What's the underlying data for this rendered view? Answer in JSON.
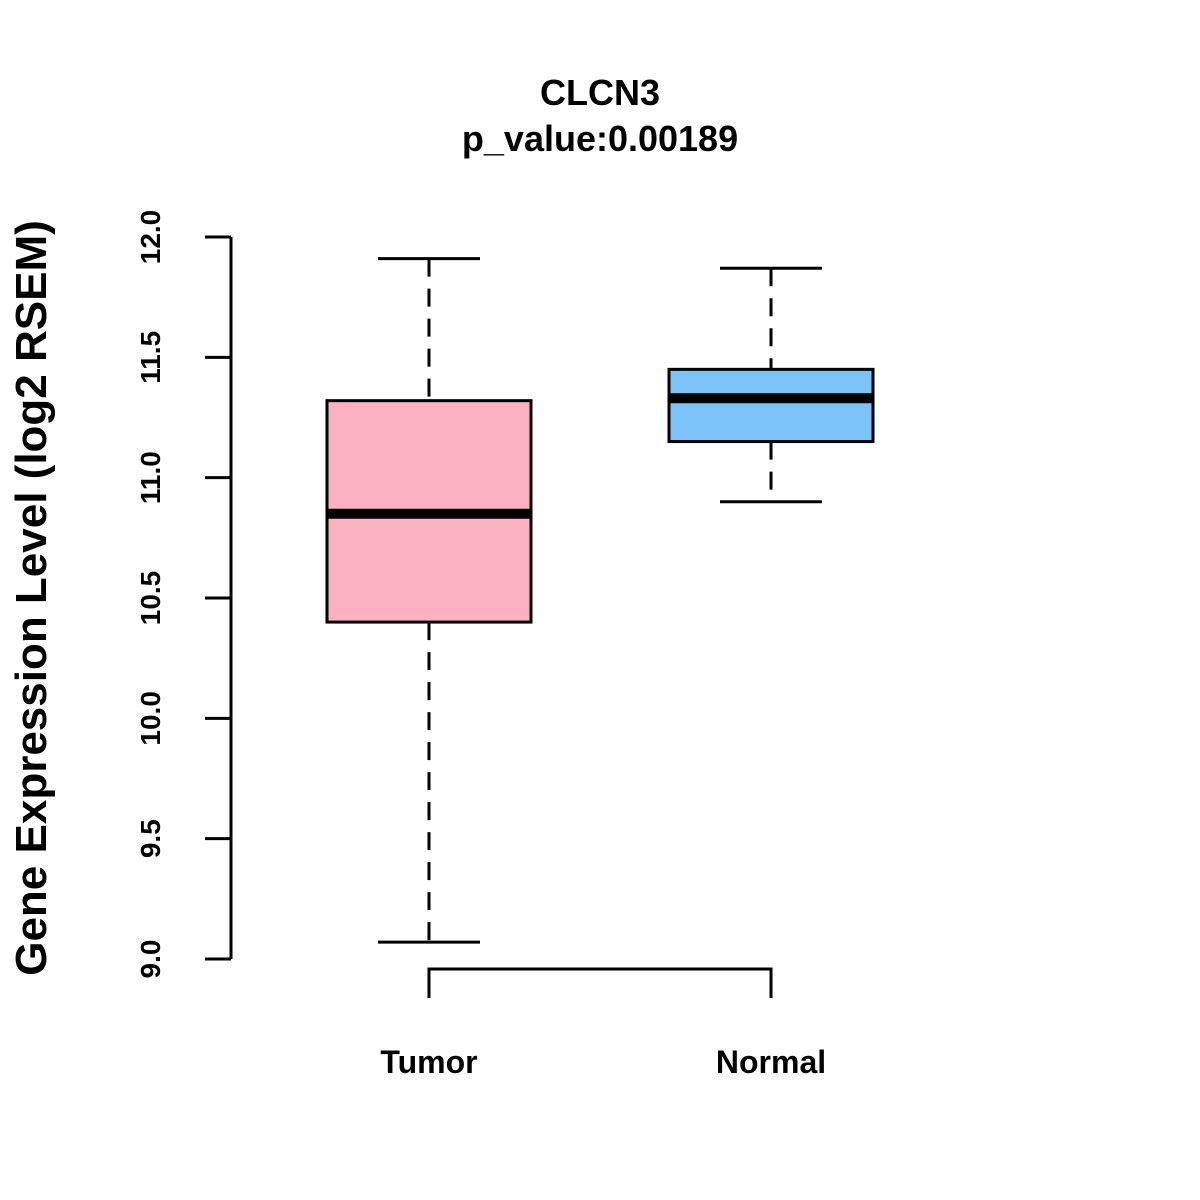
{
  "chart_data": {
    "type": "boxplot",
    "title": "CLCN3",
    "subtitle": "p_value:0.00189",
    "xlabel": "",
    "ylabel": "Gene Expression Level (log2 RSEM)",
    "ylim": [
      9.0,
      12.0
    ],
    "yticks": [
      9.0,
      9.5,
      10.0,
      10.5,
      11.0,
      11.5,
      12.0
    ],
    "ytick_labels": [
      "9.0",
      "9.5",
      "10.0",
      "10.5",
      "11.0",
      "11.5",
      "12.0"
    ],
    "grid": false,
    "categories": [
      "Tumor",
      "Normal"
    ],
    "boxes": [
      {
        "name": "Tumor",
        "whisker_low": 9.07,
        "q1": 10.4,
        "median": 10.85,
        "q3": 11.32,
        "whisker_high": 11.91,
        "color": "#FBB1C2"
      },
      {
        "name": "Normal",
        "whisker_low": 10.9,
        "q1": 11.15,
        "median": 11.33,
        "q3": 11.45,
        "whisker_high": 11.87,
        "color": "#7BC3F8"
      }
    ],
    "significance_bracket": {
      "from": "Tumor",
      "to": "Normal"
    }
  }
}
